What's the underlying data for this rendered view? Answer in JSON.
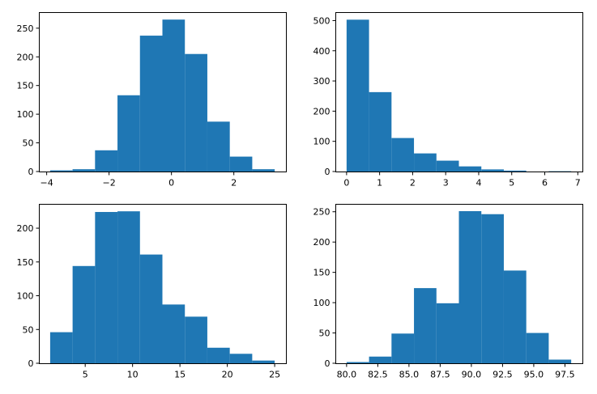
{
  "chart_data": [
    {
      "type": "bar",
      "title": "",
      "xlabel": "",
      "ylabel": "",
      "bar_color": "#1f77b4",
      "bin_edges": [
        -3.89,
        -3.17,
        -2.45,
        -1.73,
        -1.01,
        -0.29,
        0.43,
        1.15,
        1.87,
        2.59,
        3.31
      ],
      "values": [
        2,
        4,
        37,
        133,
        237,
        265,
        205,
        87,
        26,
        4
      ],
      "xlim": [
        -4.25,
        3.67
      ],
      "ylim": [
        0,
        278
      ],
      "xticks": [
        -4,
        -2,
        0,
        2
      ],
      "xtick_labels": [
        "−4",
        "−2",
        "0",
        "2"
      ],
      "yticks": [
        0,
        50,
        100,
        150,
        200,
        250
      ],
      "ytick_labels": [
        "0",
        "50",
        "100",
        "150",
        "200",
        "250"
      ]
    },
    {
      "type": "bar",
      "title": "",
      "xlabel": "",
      "ylabel": "",
      "bar_color": "#1f77b4",
      "bin_edges": [
        0.0,
        0.68,
        1.36,
        2.04,
        2.72,
        3.4,
        4.08,
        4.76,
        5.44,
        6.12,
        6.8
      ],
      "values": [
        503,
        263,
        111,
        60,
        36,
        17,
        7,
        3,
        0,
        1
      ],
      "xlim": [
        -0.34,
        7.14
      ],
      "ylim": [
        0,
        528
      ],
      "xticks": [
        0,
        1,
        2,
        3,
        4,
        5,
        6,
        7
      ],
      "xtick_labels": [
        "0",
        "1",
        "2",
        "3",
        "4",
        "5",
        "6",
        "7"
      ],
      "yticks": [
        0,
        100,
        200,
        300,
        400,
        500
      ],
      "ytick_labels": [
        "0",
        "100",
        "200",
        "300",
        "400",
        "500"
      ]
    },
    {
      "type": "bar",
      "title": "",
      "xlabel": "",
      "ylabel": "",
      "bar_color": "#1f77b4",
      "bin_edges": [
        1.3,
        3.67,
        6.04,
        8.41,
        10.78,
        13.15,
        15.52,
        17.89,
        20.26,
        22.63,
        25.0
      ],
      "values": [
        46,
        144,
        224,
        225,
        161,
        87,
        69,
        23,
        14,
        4
      ],
      "xlim": [
        0.11,
        26.19
      ],
      "ylim": [
        0,
        236
      ],
      "xticks": [
        5,
        10,
        15,
        20,
        25
      ],
      "xtick_labels": [
        "5",
        "10",
        "15",
        "20",
        "25"
      ],
      "yticks": [
        0,
        50,
        100,
        150,
        200
      ],
      "ytick_labels": [
        "0",
        "50",
        "100",
        "150",
        "200"
      ]
    },
    {
      "type": "bar",
      "title": "",
      "xlabel": "",
      "ylabel": "",
      "bar_color": "#1f77b4",
      "bin_edges": [
        80.0,
        81.8,
        83.6,
        85.4,
        87.2,
        89.0,
        90.8,
        92.6,
        94.4,
        96.2,
        98.0
      ],
      "values": [
        2,
        11,
        49,
        124,
        99,
        251,
        246,
        153,
        50,
        6
      ],
      "xlim": [
        79.1,
        98.9
      ],
      "ylim": [
        0,
        263
      ],
      "xticks": [
        80.0,
        82.5,
        85.0,
        87.5,
        90.0,
        92.5,
        95.0,
        97.5
      ],
      "xtick_labels": [
        "80.0",
        "82.5",
        "85.0",
        "87.5",
        "90.0",
        "92.5",
        "95.0",
        "97.5"
      ],
      "yticks": [
        0,
        50,
        100,
        150,
        200,
        250
      ],
      "ytick_labels": [
        "0",
        "50",
        "100",
        "150",
        "200",
        "250"
      ]
    }
  ]
}
